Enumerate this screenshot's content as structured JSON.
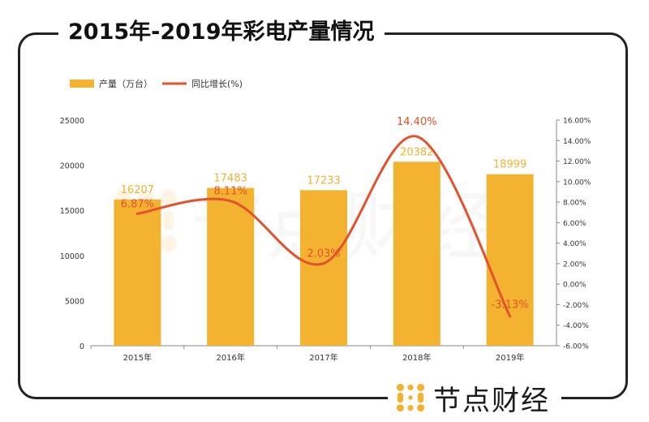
{
  "title": "2015年-2019年彩电产量情况",
  "brand": {
    "name": "节点财经",
    "icon": "node-dots-logo-icon"
  },
  "colors": {
    "bar": "#F3B230",
    "line": "#E2522C",
    "axis": "#333333",
    "frame": "#222222",
    "logo": "#F3B230"
  },
  "chart_data": {
    "type": "bar",
    "categories": [
      "2015年",
      "2016年",
      "2017年",
      "2018年",
      "2019年"
    ],
    "series": [
      {
        "name": "产量（万台）",
        "type": "bar",
        "axis": "left",
        "values": [
          16207,
          17483,
          17233,
          20382,
          18999
        ],
        "labels": [
          "16207",
          "17483",
          "17233",
          "20382",
          "18999"
        ]
      },
      {
        "name": "同比增长(%)",
        "type": "line",
        "axis": "right",
        "values": [
          6.87,
          8.11,
          2.03,
          14.4,
          -3.13
        ],
        "labels": [
          "6.87%",
          "8.11%",
          "2.03%",
          "14.40%",
          "-3.13%"
        ]
      }
    ],
    "y_left": {
      "min": 0,
      "max": 25000,
      "ticks": [
        "0",
        "5000",
        "10000",
        "15000",
        "20000",
        "25000"
      ]
    },
    "y_right": {
      "min": -6,
      "max": 16,
      "ticks": [
        "-6.00%",
        "-4.00%",
        "-2.00%",
        "0.00%",
        "2.00%",
        "4.00%",
        "6.00%",
        "8.00%",
        "10.00%",
        "12.00%",
        "14.00%",
        "16.00%"
      ]
    },
    "legend": "top-left",
    "grid": false
  }
}
